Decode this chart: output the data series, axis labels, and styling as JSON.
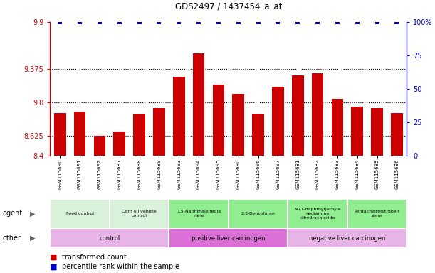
{
  "title": "GDS2497 / 1437454_a_at",
  "samples": [
    "GSM115690",
    "GSM115691",
    "GSM115692",
    "GSM115687",
    "GSM115688",
    "GSM115689",
    "GSM115693",
    "GSM115694",
    "GSM115695",
    "GSM115680",
    "GSM115696",
    "GSM115697",
    "GSM115681",
    "GSM115682",
    "GSM115683",
    "GSM115684",
    "GSM115685",
    "GSM115686"
  ],
  "bar_values": [
    8.88,
    8.89,
    8.62,
    8.67,
    8.87,
    8.93,
    9.28,
    9.55,
    9.2,
    9.09,
    8.87,
    9.17,
    9.3,
    9.32,
    9.04,
    8.95,
    8.93,
    8.88
  ],
  "percentile_values": [
    100,
    100,
    100,
    100,
    100,
    100,
    100,
    100,
    100,
    100,
    100,
    100,
    100,
    100,
    100,
    100,
    100,
    100
  ],
  "bar_color": "#cc0000",
  "percentile_color": "#0000cc",
  "ylim_left": [
    8.4,
    9.9
  ],
  "ylim_right": [
    0,
    100
  ],
  "yticks_left": [
    8.4,
    8.625,
    9.0,
    9.375,
    9.9
  ],
  "yticks_right": [
    0,
    25,
    50,
    75,
    100
  ],
  "grid_yticks": [
    8.625,
    9.0,
    9.375
  ],
  "agent_groups": [
    {
      "label": "Feed control",
      "start": 0,
      "end": 3,
      "color": "#d9f0d9"
    },
    {
      "label": "Corn oil vehicle\ncontrol",
      "start": 3,
      "end": 6,
      "color": "#d9f0d9"
    },
    {
      "label": "1,5-Naphthalenedia\nmine",
      "start": 6,
      "end": 9,
      "color": "#90ee90"
    },
    {
      "label": "2,3-Benzofuran",
      "start": 9,
      "end": 12,
      "color": "#90ee90"
    },
    {
      "label": "N-(1-naphthyl)ethyle\nnediamine\ndihydrochloride",
      "start": 12,
      "end": 15,
      "color": "#90ee90"
    },
    {
      "label": "Pentachloronitroben\nzene",
      "start": 15,
      "end": 18,
      "color": "#90ee90"
    }
  ],
  "other_groups": [
    {
      "label": "control",
      "start": 0,
      "end": 6,
      "color": "#e8b4e8"
    },
    {
      "label": "positive liver carcinogen",
      "start": 6,
      "end": 12,
      "color": "#da70d6"
    },
    {
      "label": "negative liver carcinogen",
      "start": 12,
      "end": 18,
      "color": "#e8b4e8"
    }
  ],
  "legend_items": [
    {
      "label": "transformed count",
      "color": "#cc0000"
    },
    {
      "label": "percentile rank within the sample",
      "color": "#0000cc"
    }
  ]
}
